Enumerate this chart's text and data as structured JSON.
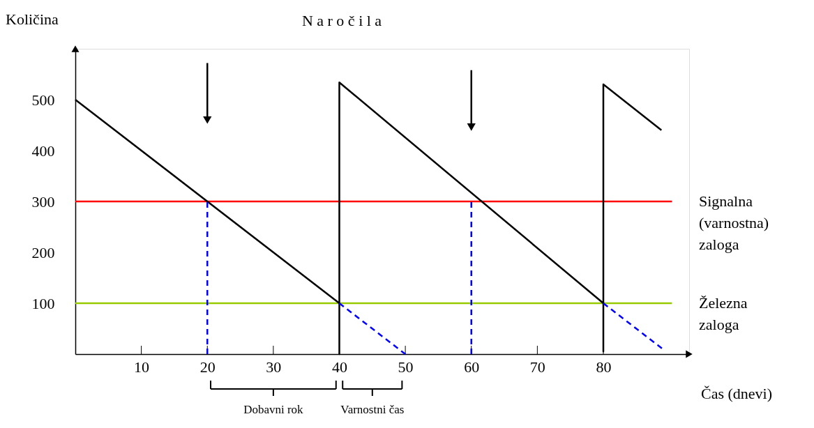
{
  "chart_data": {
    "type": "line",
    "title": "N a r o č i l a",
    "xlabel": "Čas (dnevi)",
    "ylabel": "Količina",
    "xlim": [
      0,
      93
    ],
    "ylim": [
      0,
      600
    ],
    "xticks": [
      10,
      20,
      30,
      40,
      50,
      60,
      70,
      80
    ],
    "yticks": [
      100,
      200,
      300,
      400,
      500
    ],
    "grid": false,
    "series": [
      {
        "color": "#000000",
        "line_style": "solid",
        "x": [
          0,
          40,
          40,
          40,
          80,
          80,
          80,
          88.8
        ],
        "values": [
          500,
          100,
          0,
          534,
          100,
          5,
          530,
          440
        ]
      },
      {
        "color": "#0000ff",
        "line_style": "dashed",
        "x": [
          20,
          20
        ],
        "values": [
          0,
          300
        ]
      },
      {
        "color": "#0000ff",
        "line_style": "dashed",
        "x": [
          60,
          60
        ],
        "values": [
          0,
          300
        ]
      },
      {
        "color": "#0000ff",
        "line_style": "dashed",
        "x": [
          40,
          50
        ],
        "values": [
          100,
          0
        ]
      },
      {
        "color": "#0000ff",
        "line_style": "dashed",
        "x": [
          80,
          89
        ],
        "values": [
          100,
          10
        ]
      },
      {
        "color": "#000000",
        "line_style": "solid",
        "marker": "triangle",
        "x": [
          20,
          20
        ],
        "values": [
          572,
          460
        ]
      },
      {
        "color": "#000000",
        "line_style": "solid",
        "marker": "triangle",
        "x": [
          60,
          60
        ],
        "values": [
          558,
          446
        ]
      }
    ],
    "ref_lines": [
      {
        "axis": "y",
        "value": 300,
        "label": "Signalna (varnostna) zaloga",
        "color": "#ff0000"
      },
      {
        "axis": "y",
        "value": 100,
        "label": "Železna zaloga",
        "color": "#99cc00"
      }
    ],
    "annotations": [
      "Dobavni rok",
      "Varnostni čas"
    ]
  }
}
